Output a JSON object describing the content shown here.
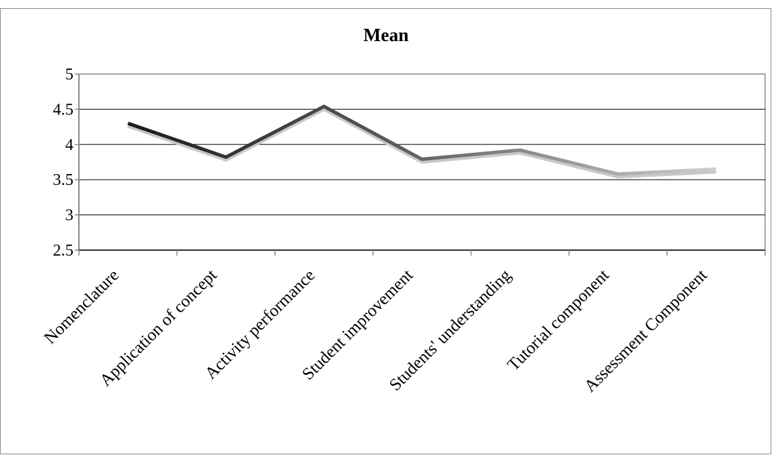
{
  "chart_data": {
    "type": "line",
    "title": "Mean",
    "categories": [
      "Nomenclature",
      "Application of concept",
      "Activity performance",
      "Student improvement",
      "Students' understanding",
      "Tutorial component",
      "Assessment Component"
    ],
    "series": [
      {
        "values": [
          4.3,
          3.82,
          4.54,
          3.79,
          3.92,
          3.58,
          3.65
        ]
      }
    ],
    "ylim": [
      2.5,
      5
    ],
    "yticks": [
      "2.5",
      "3",
      "3.5",
      "4",
      "4.5",
      "5"
    ],
    "grid": true,
    "legend": "none",
    "colors": {
      "line_start": "#1a1a1a",
      "line_end": "#cfcfcf",
      "grid": "#000000",
      "axis": "#8a8a8a"
    }
  }
}
